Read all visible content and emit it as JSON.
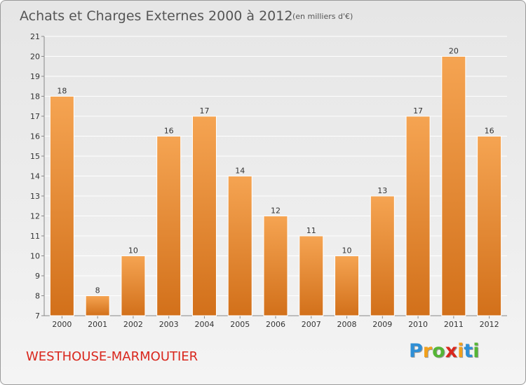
{
  "title": "Achats et Charges Externes 2000 à 2012",
  "unit": "(en milliers d'€)",
  "commune": "WESTHOUSE-MARMOUTIER",
  "logo": {
    "letters": [
      "P",
      "r",
      "o",
      "x",
      "i",
      "t",
      "i"
    ],
    "colors": [
      "#2e8fd6",
      "#f2a01b",
      "#55b536",
      "#d9271d",
      "#f2a01b",
      "#2e8fd6",
      "#55b536"
    ]
  },
  "colors": {
    "bar_top": "#f5a452",
    "bar_bottom": "#d2701a",
    "commune": "#d9271d"
  },
  "chart_data": {
    "type": "bar",
    "title": "Achats et Charges Externes 2000 à 2012",
    "subtitle": "(en milliers d'€)",
    "categories": [
      "2000",
      "2001",
      "2002",
      "2003",
      "2004",
      "2005",
      "2006",
      "2007",
      "2008",
      "2009",
      "2010",
      "2011",
      "2012"
    ],
    "values": [
      18,
      8,
      10,
      16,
      17,
      14,
      12,
      11,
      10,
      13,
      17,
      20,
      16
    ],
    "ylim": [
      7,
      21
    ],
    "yticks": [
      7,
      8,
      9,
      10,
      11,
      12,
      13,
      14,
      15,
      16,
      17,
      18,
      19,
      20,
      21
    ],
    "grid": true
  }
}
